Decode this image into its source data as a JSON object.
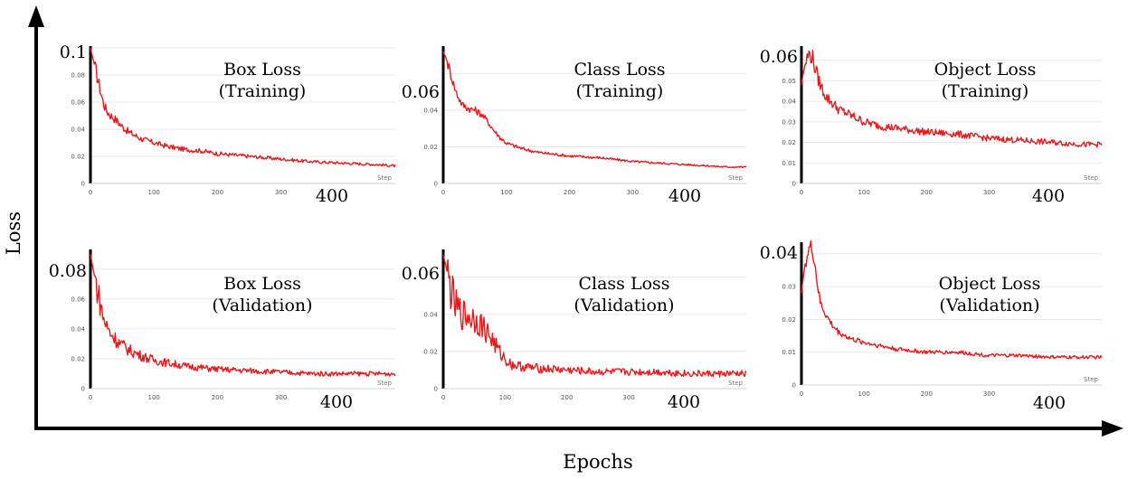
{
  "figure": {
    "y_axis_label": "Loss",
    "x_axis_label": "Epochs"
  },
  "chart_data": [
    {
      "type": "line",
      "title_line1": "Box Loss",
      "title_line2": "(Training)",
      "xlabel": "Step",
      "ylabel": "",
      "xlim": [
        0,
        480
      ],
      "ylim": [
        0,
        0.1
      ],
      "x_ticks": [
        0,
        100,
        200,
        300
      ],
      "x_big_tick": "400",
      "y_ticks": [
        "0",
        "0.02",
        "0.04",
        "0.06",
        "0.08"
      ],
      "y_big_tick": "0.1",
      "grid": true,
      "line_color": "#e8191b",
      "series": [
        {
          "x": [
            0,
            5,
            10,
            15,
            20,
            25,
            30,
            40,
            50,
            60,
            80,
            100,
            125,
            150,
            175,
            200,
            250,
            300,
            350,
            400,
            450,
            480
          ],
          "y": [
            0.1,
            0.09,
            0.08,
            0.07,
            0.06,
            0.054,
            0.051,
            0.047,
            0.042,
            0.038,
            0.033,
            0.03,
            0.027,
            0.025,
            0.024,
            0.022,
            0.02,
            0.018,
            0.016,
            0.015,
            0.014,
            0.013
          ]
        }
      ]
    },
    {
      "type": "line",
      "title_line1": "Class Loss",
      "title_line2": "(Training)",
      "xlabel": "Step",
      "ylabel": "",
      "xlim": [
        0,
        480
      ],
      "ylim": [
        0,
        0.074
      ],
      "x_ticks": [
        0,
        100,
        200,
        300
      ],
      "x_big_tick": "400",
      "y_ticks": [
        "0",
        "0.02",
        "0.04"
      ],
      "y_big_tick": "0.06",
      "grid": true,
      "line_color": "#e8191b",
      "series": [
        {
          "x": [
            0,
            5,
            10,
            20,
            30,
            40,
            50,
            60,
            70,
            80,
            90,
            100,
            125,
            150,
            200,
            250,
            300,
            350,
            400,
            450,
            480
          ],
          "y": [
            0.072,
            0.068,
            0.062,
            0.05,
            0.043,
            0.041,
            0.04,
            0.038,
            0.034,
            0.029,
            0.025,
            0.022,
            0.019,
            0.017,
            0.015,
            0.014,
            0.012,
            0.011,
            0.01,
            0.009,
            0.009
          ]
        }
      ]
    },
    {
      "type": "line",
      "title_line1": "Object Loss",
      "title_line2": "(Training)",
      "xlabel": "Step",
      "ylabel": "",
      "xlim": [
        0,
        480
      ],
      "ylim": [
        0,
        0.066
      ],
      "x_ticks": [
        0,
        100,
        200,
        300
      ],
      "x_big_tick": "400",
      "y_ticks": [
        "0",
        "0.01",
        "0.02",
        "0.03",
        "0.04",
        "0.05"
      ],
      "y_big_tick": "0.06",
      "grid": true,
      "line_color": "#e8191b",
      "series": [
        {
          "x": [
            0,
            3,
            6,
            10,
            14,
            18,
            22,
            26,
            30,
            40,
            50,
            60,
            80,
            100,
            125,
            150,
            200,
            250,
            300,
            350,
            400,
            450,
            480
          ],
          "y": [
            0.048,
            0.054,
            0.058,
            0.062,
            0.063,
            0.061,
            0.056,
            0.052,
            0.048,
            0.042,
            0.039,
            0.036,
            0.033,
            0.03,
            0.028,
            0.027,
            0.025,
            0.024,
            0.022,
            0.021,
            0.02,
            0.019,
            0.019
          ]
        }
      ]
    },
    {
      "type": "line",
      "title_line1": "Box Loss",
      "title_line2": "(Validation)",
      "xlabel": "Step",
      "ylabel": "",
      "xlim": [
        0,
        480
      ],
      "ylim": [
        0,
        0.092
      ],
      "x_ticks": [
        0,
        100,
        200,
        300
      ],
      "x_big_tick": "400",
      "y_ticks": [
        "0",
        "0.02",
        "0.04",
        "0.06"
      ],
      "y_big_tick": "0.08",
      "grid": true,
      "line_color": "#e8191b",
      "series": [
        {
          "x": [
            0,
            5,
            10,
            15,
            20,
            25,
            30,
            40,
            50,
            60,
            80,
            100,
            125,
            150,
            175,
            200,
            250,
            300,
            350,
            400,
            450,
            480
          ],
          "y": [
            0.09,
            0.078,
            0.068,
            0.058,
            0.048,
            0.042,
            0.038,
            0.033,
            0.029,
            0.026,
            0.022,
            0.019,
            0.017,
            0.015,
            0.014,
            0.013,
            0.012,
            0.011,
            0.01,
            0.01,
            0.01,
            0.01
          ]
        }
      ]
    },
    {
      "type": "line",
      "title_line1": "Class Loss",
      "title_line2": "(Validation)",
      "xlabel": "Step",
      "ylabel": "",
      "xlim": [
        0,
        490
      ],
      "ylim": [
        0,
        0.074
      ],
      "x_ticks": [
        0,
        100,
        200,
        300
      ],
      "x_big_tick": "400",
      "y_ticks": [
        "0",
        "0.02",
        "0.04"
      ],
      "y_big_tick": "0.06",
      "grid": true,
      "line_color": "#e8191b",
      "series": [
        {
          "x": [
            0,
            5,
            10,
            20,
            30,
            40,
            50,
            60,
            70,
            80,
            90,
            100,
            110,
            125,
            150,
            200,
            250,
            300,
            350,
            400,
            450,
            490
          ],
          "y": [
            0.072,
            0.065,
            0.056,
            0.044,
            0.04,
            0.039,
            0.038,
            0.035,
            0.031,
            0.026,
            0.02,
            0.016,
            0.013,
            0.012,
            0.011,
            0.01,
            0.009,
            0.009,
            0.009,
            0.008,
            0.008,
            0.008
          ]
        }
      ]
    },
    {
      "type": "line",
      "title_line1": "Object Loss",
      "title_line2": "(Validation)",
      "xlabel": "Step",
      "ylabel": "",
      "xlim": [
        0,
        480
      ],
      "ylim": [
        0,
        0.043
      ],
      "x_ticks": [
        0,
        100,
        200,
        300
      ],
      "x_big_tick": "400",
      "y_ticks": [
        "0",
        "0.01",
        "0.02",
        "0.03"
      ],
      "y_big_tick": "0.04",
      "grid": true,
      "line_color": "#e8191b",
      "series": [
        {
          "x": [
            0,
            3,
            6,
            10,
            14,
            18,
            22,
            26,
            30,
            40,
            50,
            60,
            80,
            100,
            125,
            150,
            200,
            250,
            300,
            350,
            400,
            450,
            480
          ],
          "y": [
            0.028,
            0.033,
            0.037,
            0.04,
            0.042,
            0.041,
            0.036,
            0.03,
            0.025,
            0.021,
            0.018,
            0.016,
            0.014,
            0.013,
            0.012,
            0.011,
            0.01,
            0.01,
            0.009,
            0.009,
            0.0085,
            0.0085,
            0.0085
          ]
        }
      ]
    }
  ]
}
